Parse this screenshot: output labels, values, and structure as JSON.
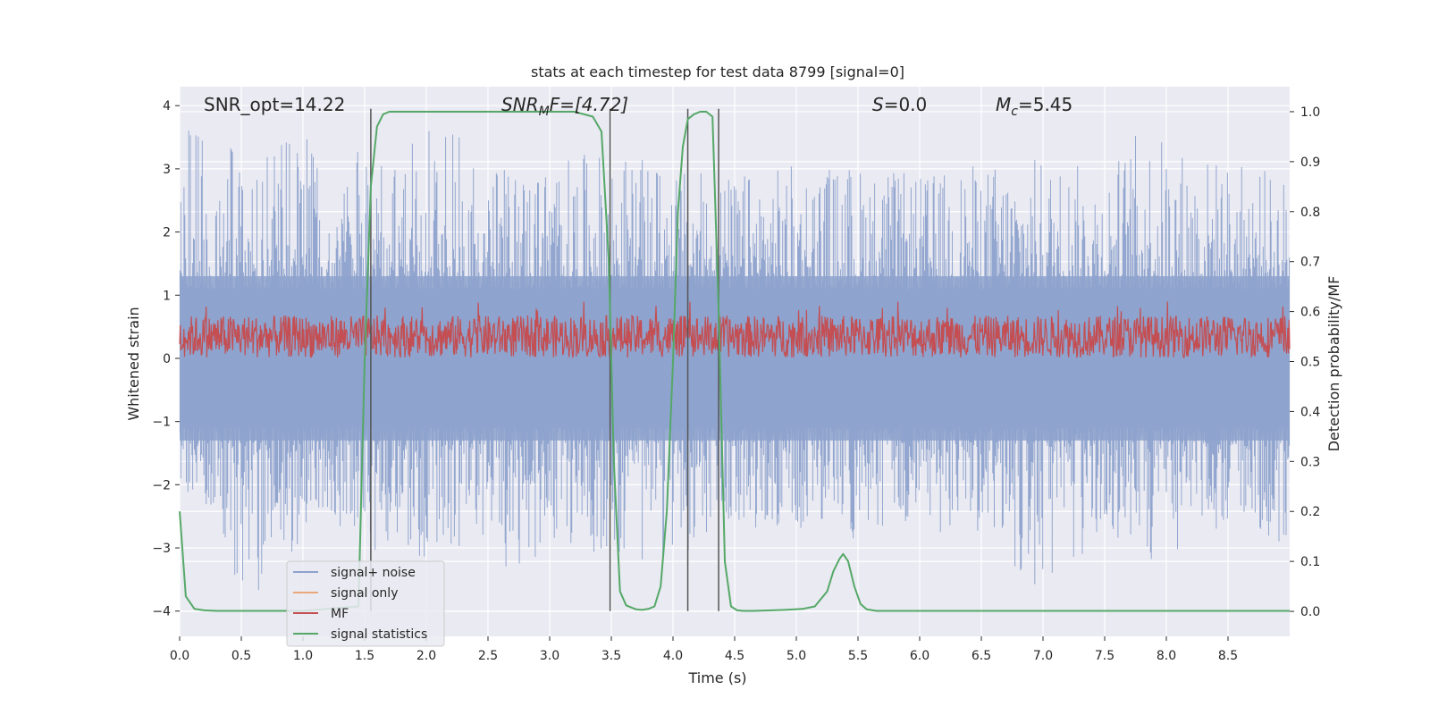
{
  "chart_data": {
    "type": "line",
    "title": "stats at each timestep for test data 8799 [signal=0]",
    "xlabel": "Time (s)",
    "ylabel": "Whitened strain",
    "y2label": "Detection probability/MF",
    "xlim": [
      0.0,
      9.0
    ],
    "ylim": [
      -4.4,
      4.3
    ],
    "y2lim": [
      -0.05,
      1.05
    ],
    "xticks": [
      "0.0",
      "0.5",
      "1.0",
      "1.5",
      "2.0",
      "2.5",
      "3.0",
      "3.5",
      "4.0",
      "4.5",
      "5.0",
      "5.5",
      "6.0",
      "6.5",
      "7.0",
      "7.5",
      "8.0",
      "8.5"
    ],
    "yticks": [
      "4",
      "3",
      "2",
      "1",
      "0",
      "−1",
      "−2",
      "−3",
      "−4"
    ],
    "y2ticks": [
      "1.0",
      "0.9",
      "0.8",
      "0.7",
      "0.6",
      "0.5",
      "0.4",
      "0.3",
      "0.2",
      "0.1",
      "0.0"
    ],
    "grid": true,
    "legend_position": "lower-left",
    "annotations": {
      "snr_opt": "SNR_opt=14.22",
      "snr_mf_main": "SNR",
      "snr_mf_sub": "M",
      "snr_mf_rest": "F=[4.72]",
      "s_main": "S",
      "s_rest": "=0.0",
      "mc_main": "M",
      "mc_sub": "c",
      "mc_rest": "=5.45"
    },
    "vertical_lines_x": [
      1.55,
      3.49,
      4.12,
      4.37
    ],
    "series": [
      {
        "name": "signal+ noise",
        "color": "#8da2cc",
        "description": "noise band",
        "envelope_upper": [
          [
            0.0,
            2.4
          ],
          [
            0.05,
            3.7
          ],
          [
            0.5,
            3.3
          ],
          [
            1.1,
            3.5
          ],
          [
            1.7,
            3.1
          ],
          [
            2.1,
            3.8
          ],
          [
            2.6,
            3.0
          ],
          [
            3.5,
            3.3
          ],
          [
            4.0,
            3.0
          ],
          [
            4.5,
            2.9
          ],
          [
            5.0,
            3.1
          ],
          [
            5.5,
            3.1
          ],
          [
            6.0,
            2.9
          ],
          [
            6.5,
            3.1
          ],
          [
            7.0,
            3.2
          ],
          [
            7.5,
            3.0
          ],
          [
            7.8,
            3.7
          ],
          [
            8.2,
            3.3
          ],
          [
            8.6,
            3.1
          ],
          [
            9.0,
            2.9
          ]
        ],
        "envelope_lower": [
          [
            0.0,
            -2.2
          ],
          [
            0.3,
            -2.6
          ],
          [
            0.5,
            -4.0
          ],
          [
            1.0,
            -3.0
          ],
          [
            1.5,
            -3.0
          ],
          [
            2.0,
            -3.2
          ],
          [
            2.5,
            -2.8
          ],
          [
            2.7,
            -4.0
          ],
          [
            3.0,
            -2.9
          ],
          [
            3.8,
            -3.3
          ],
          [
            4.5,
            -2.8
          ],
          [
            5.0,
            -2.7
          ],
          [
            5.5,
            -2.9
          ],
          [
            6.0,
            -2.8
          ],
          [
            6.5,
            -2.8
          ],
          [
            7.1,
            -4.0
          ],
          [
            7.5,
            -2.8
          ],
          [
            7.8,
            -3.4
          ],
          [
            8.2,
            -2.9
          ],
          [
            8.6,
            -2.6
          ],
          [
            9.0,
            -3.1
          ]
        ]
      },
      {
        "name": "signal only",
        "color": "#e8a87c",
        "values": []
      },
      {
        "name": "MF",
        "color": "#c44e52",
        "y2_range": [
          0.49,
          0.61
        ]
      },
      {
        "name": "signal statistics",
        "color": "#55a868",
        "axis": "y2",
        "x": [
          0.0,
          0.05,
          0.12,
          0.2,
          0.3,
          0.5,
          1.0,
          1.45,
          1.5,
          1.55,
          1.6,
          1.65,
          1.7,
          2.0,
          2.5,
          3.0,
          3.2,
          3.35,
          3.42,
          3.48,
          3.52,
          3.57,
          3.62,
          3.7,
          3.75,
          3.8,
          3.85,
          3.9,
          3.95,
          4.0,
          4.04,
          4.08,
          4.12,
          4.17,
          4.22,
          4.27,
          4.32,
          4.37,
          4.42,
          4.47,
          4.52,
          4.57,
          4.65,
          4.8,
          4.9,
          5.05,
          5.15,
          5.25,
          5.3,
          5.35,
          5.38,
          5.42,
          5.47,
          5.52,
          5.57,
          5.65,
          5.8,
          6.0,
          7.0,
          8.0,
          9.0
        ],
        "values": [
          0.2,
          0.03,
          0.005,
          0.002,
          0.001,
          0.001,
          0.001,
          0.01,
          0.5,
          0.85,
          0.97,
          0.995,
          1.0,
          1.0,
          1.0,
          1.0,
          1.0,
          0.99,
          0.96,
          0.7,
          0.3,
          0.04,
          0.012,
          0.004,
          0.003,
          0.005,
          0.01,
          0.05,
          0.2,
          0.5,
          0.8,
          0.93,
          0.985,
          0.995,
          1.0,
          1.0,
          0.99,
          0.6,
          0.1,
          0.01,
          0.002,
          0.001,
          0.001,
          0.002,
          0.003,
          0.005,
          0.01,
          0.04,
          0.08,
          0.105,
          0.115,
          0.1,
          0.05,
          0.015,
          0.004,
          0.001,
          0.001,
          0.001,
          0.001,
          0.001,
          0.001
        ]
      }
    ]
  }
}
